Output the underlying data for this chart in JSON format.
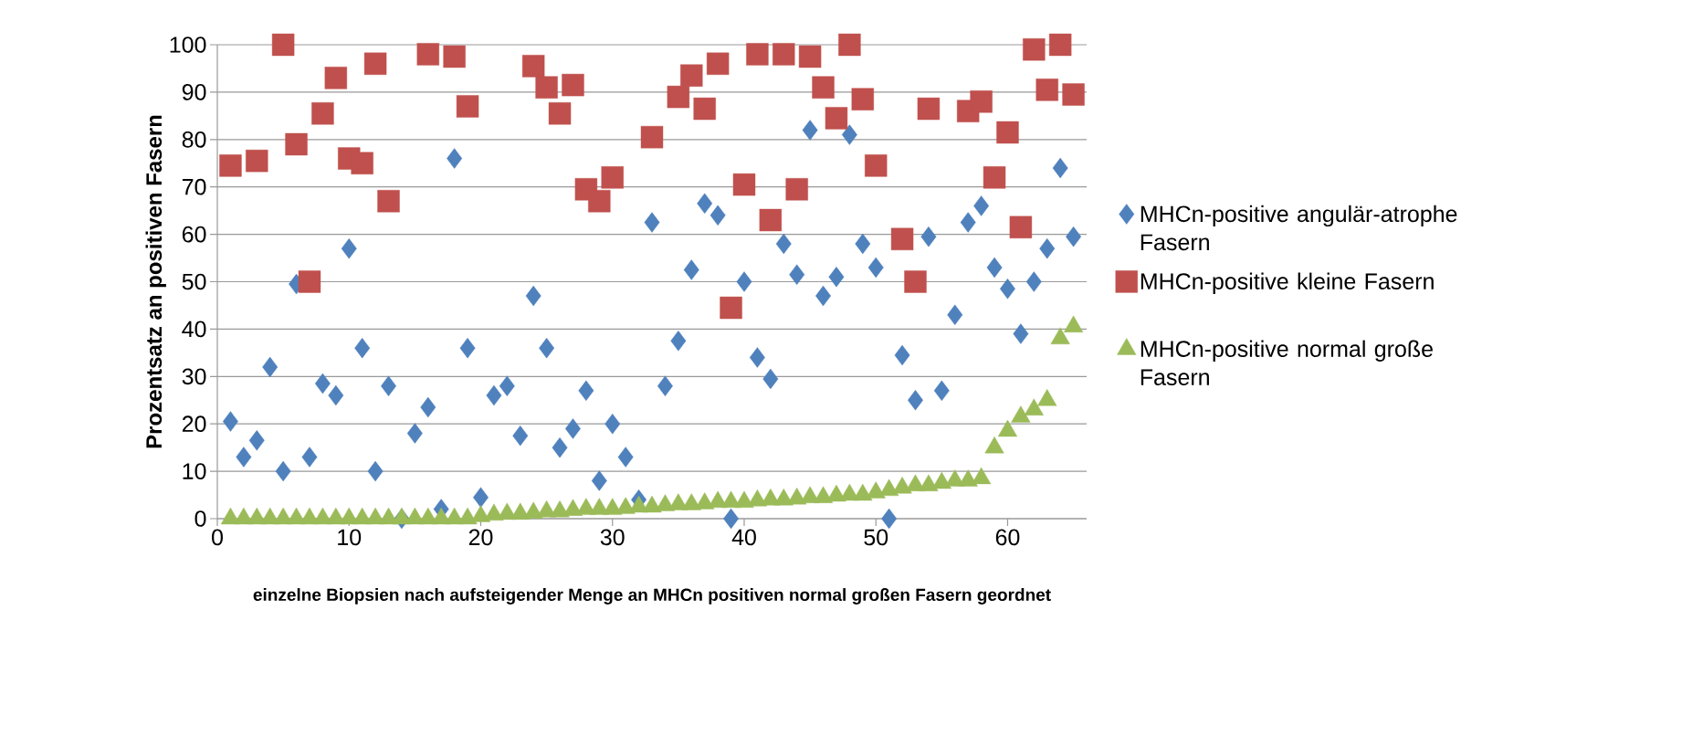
{
  "chart_data": {
    "type": "scatter",
    "xlabel": "einzelne Biopsien nach aufsteigender Menge an MHCn positiven normal großen Fasern geordnet",
    "ylabel": "Prozentsatz an positiven Fasern",
    "x": [
      1,
      2,
      3,
      4,
      5,
      6,
      7,
      8,
      9,
      10,
      11,
      12,
      13,
      14,
      15,
      16,
      17,
      18,
      19,
      20,
      21,
      22,
      23,
      24,
      25,
      26,
      27,
      28,
      29,
      30,
      31,
      32,
      33,
      34,
      35,
      36,
      37,
      38,
      39,
      40,
      41,
      42,
      43,
      44,
      45,
      46,
      47,
      48,
      49,
      50,
      51,
      52,
      53,
      54,
      55,
      56,
      57,
      58,
      59,
      60,
      61,
      62,
      63,
      64,
      65
    ],
    "xlim": [
      0,
      66
    ],
    "xticks": [
      0,
      10,
      20,
      30,
      40,
      50,
      60
    ],
    "ylim": [
      0,
      100
    ],
    "yticks": [
      0,
      10,
      20,
      30,
      40,
      50,
      60,
      70,
      80,
      90,
      100
    ],
    "grid": "y",
    "legend": "right",
    "series": [
      {
        "name": "MHCn-positive angulär-atrophe Fasern",
        "color": "#4f81bd",
        "marker": "diamond",
        "values": [
          20.5,
          13,
          16.5,
          32,
          10,
          49.5,
          13,
          28.5,
          26,
          57,
          36,
          10,
          28,
          0,
          18,
          23.5,
          2,
          76,
          36,
          4.5,
          26,
          28,
          17.5,
          47,
          36,
          15,
          19,
          27,
          8,
          20,
          13,
          4,
          62.5,
          28,
          37.5,
          52.5,
          66.5,
          64,
          0,
          50,
          34,
          29.5,
          58,
          51.5,
          82,
          47,
          51,
          81,
          58,
          53,
          0,
          34.5,
          25,
          59.5,
          27,
          43,
          62.5,
          66,
          53,
          48.5,
          39,
          50,
          57,
          74,
          59.5
        ]
      },
      {
        "name": "MHCn-positive kleine Fasern",
        "color": "#c0504d",
        "marker": "square",
        "values": [
          74.5,
          null,
          75.5,
          null,
          100,
          79,
          50,
          85.5,
          93,
          76,
          75,
          96,
          67,
          null,
          null,
          98,
          null,
          97.5,
          87,
          null,
          null,
          null,
          null,
          95.5,
          91,
          85.5,
          91.5,
          69.5,
          67,
          72,
          null,
          null,
          80.5,
          null,
          89,
          93.5,
          86.5,
          96,
          44.5,
          70.5,
          98,
          63,
          98,
          69.5,
          97.5,
          91,
          84.5,
          100,
          88.5,
          74.5,
          null,
          59,
          50,
          86.5,
          null,
          null,
          86,
          88,
          72,
          81.5,
          61.5,
          99,
          90.5,
          100,
          89.5
        ]
      },
      {
        "name": "MHCn-positive normal große Fasern",
        "color": "#9bbb59",
        "marker": "triangle",
        "values": [
          0,
          0,
          0,
          0,
          0,
          0,
          0,
          0,
          0,
          0,
          0,
          0,
          0,
          0,
          0,
          0,
          0,
          0,
          0,
          0.5,
          0.8,
          1,
          1,
          1.2,
          1.5,
          1.5,
          1.8,
          2,
          2,
          2,
          2.2,
          2.5,
          2.5,
          2.8,
          3,
          3,
          3.2,
          3.5,
          3.5,
          3.5,
          3.8,
          4,
          4,
          4.2,
          4.5,
          4.5,
          4.8,
          5,
          5,
          5.5,
          6,
          6.5,
          7,
          7,
          7.5,
          8,
          8,
          8.5,
          15,
          18.5,
          21.5,
          23,
          25,
          38,
          40.5
        ]
      }
    ]
  }
}
